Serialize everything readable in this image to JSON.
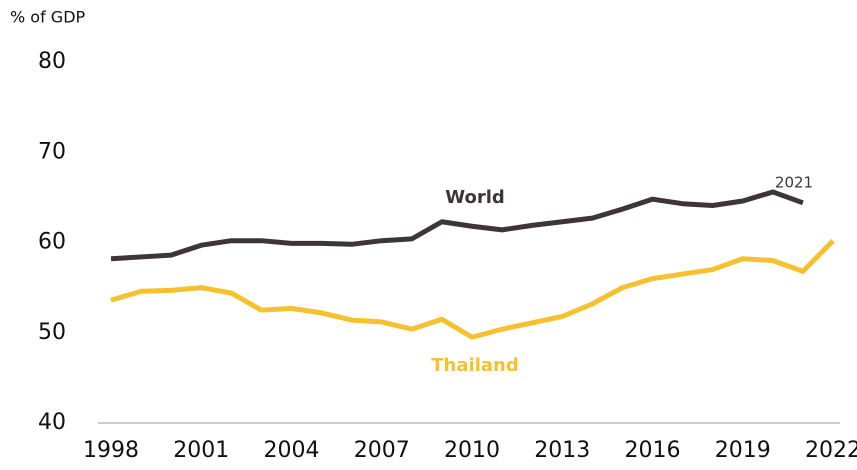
{
  "chart_data": {
    "type": "line",
    "y_axis_label": "% of GDP",
    "x": [
      1998,
      1999,
      2000,
      2001,
      2002,
      2003,
      2004,
      2005,
      2006,
      2007,
      2008,
      2009,
      2010,
      2011,
      2012,
      2013,
      2014,
      2015,
      2016,
      2017,
      2018,
      2019,
      2020,
      2021,
      2022
    ],
    "series": [
      {
        "name": "World",
        "color": "#3d3536",
        "values": [
          58.2,
          58.4,
          58.6,
          59.7,
          60.2,
          60.2,
          59.9,
          59.9,
          59.8,
          60.2,
          60.4,
          62.3,
          61.8,
          61.4,
          61.9,
          62.3,
          62.7,
          63.7,
          64.8,
          64.3,
          64.1,
          64.6,
          65.6,
          64.4,
          null
        ]
      },
      {
        "name": "Thailand",
        "color": "#f5c12e",
        "values": [
          53.6,
          54.6,
          54.7,
          55.0,
          54.4,
          52.5,
          52.7,
          52.2,
          51.4,
          51.2,
          50.4,
          51.5,
          49.5,
          50.4,
          51.1,
          51.8,
          53.2,
          55.0,
          56.0,
          56.5,
          57.0,
          58.2,
          58.0,
          56.8,
          60.2
        ]
      }
    ],
    "annotations": [
      "2021"
    ],
    "xlim": [
      1998,
      2022
    ],
    "xticks": [
      1998,
      2001,
      2004,
      2007,
      2010,
      2013,
      2016,
      2019,
      2022
    ],
    "ylim": [
      40,
      80
    ],
    "yticks": [
      40,
      50,
      60,
      70,
      80
    ],
    "grid": false
  }
}
